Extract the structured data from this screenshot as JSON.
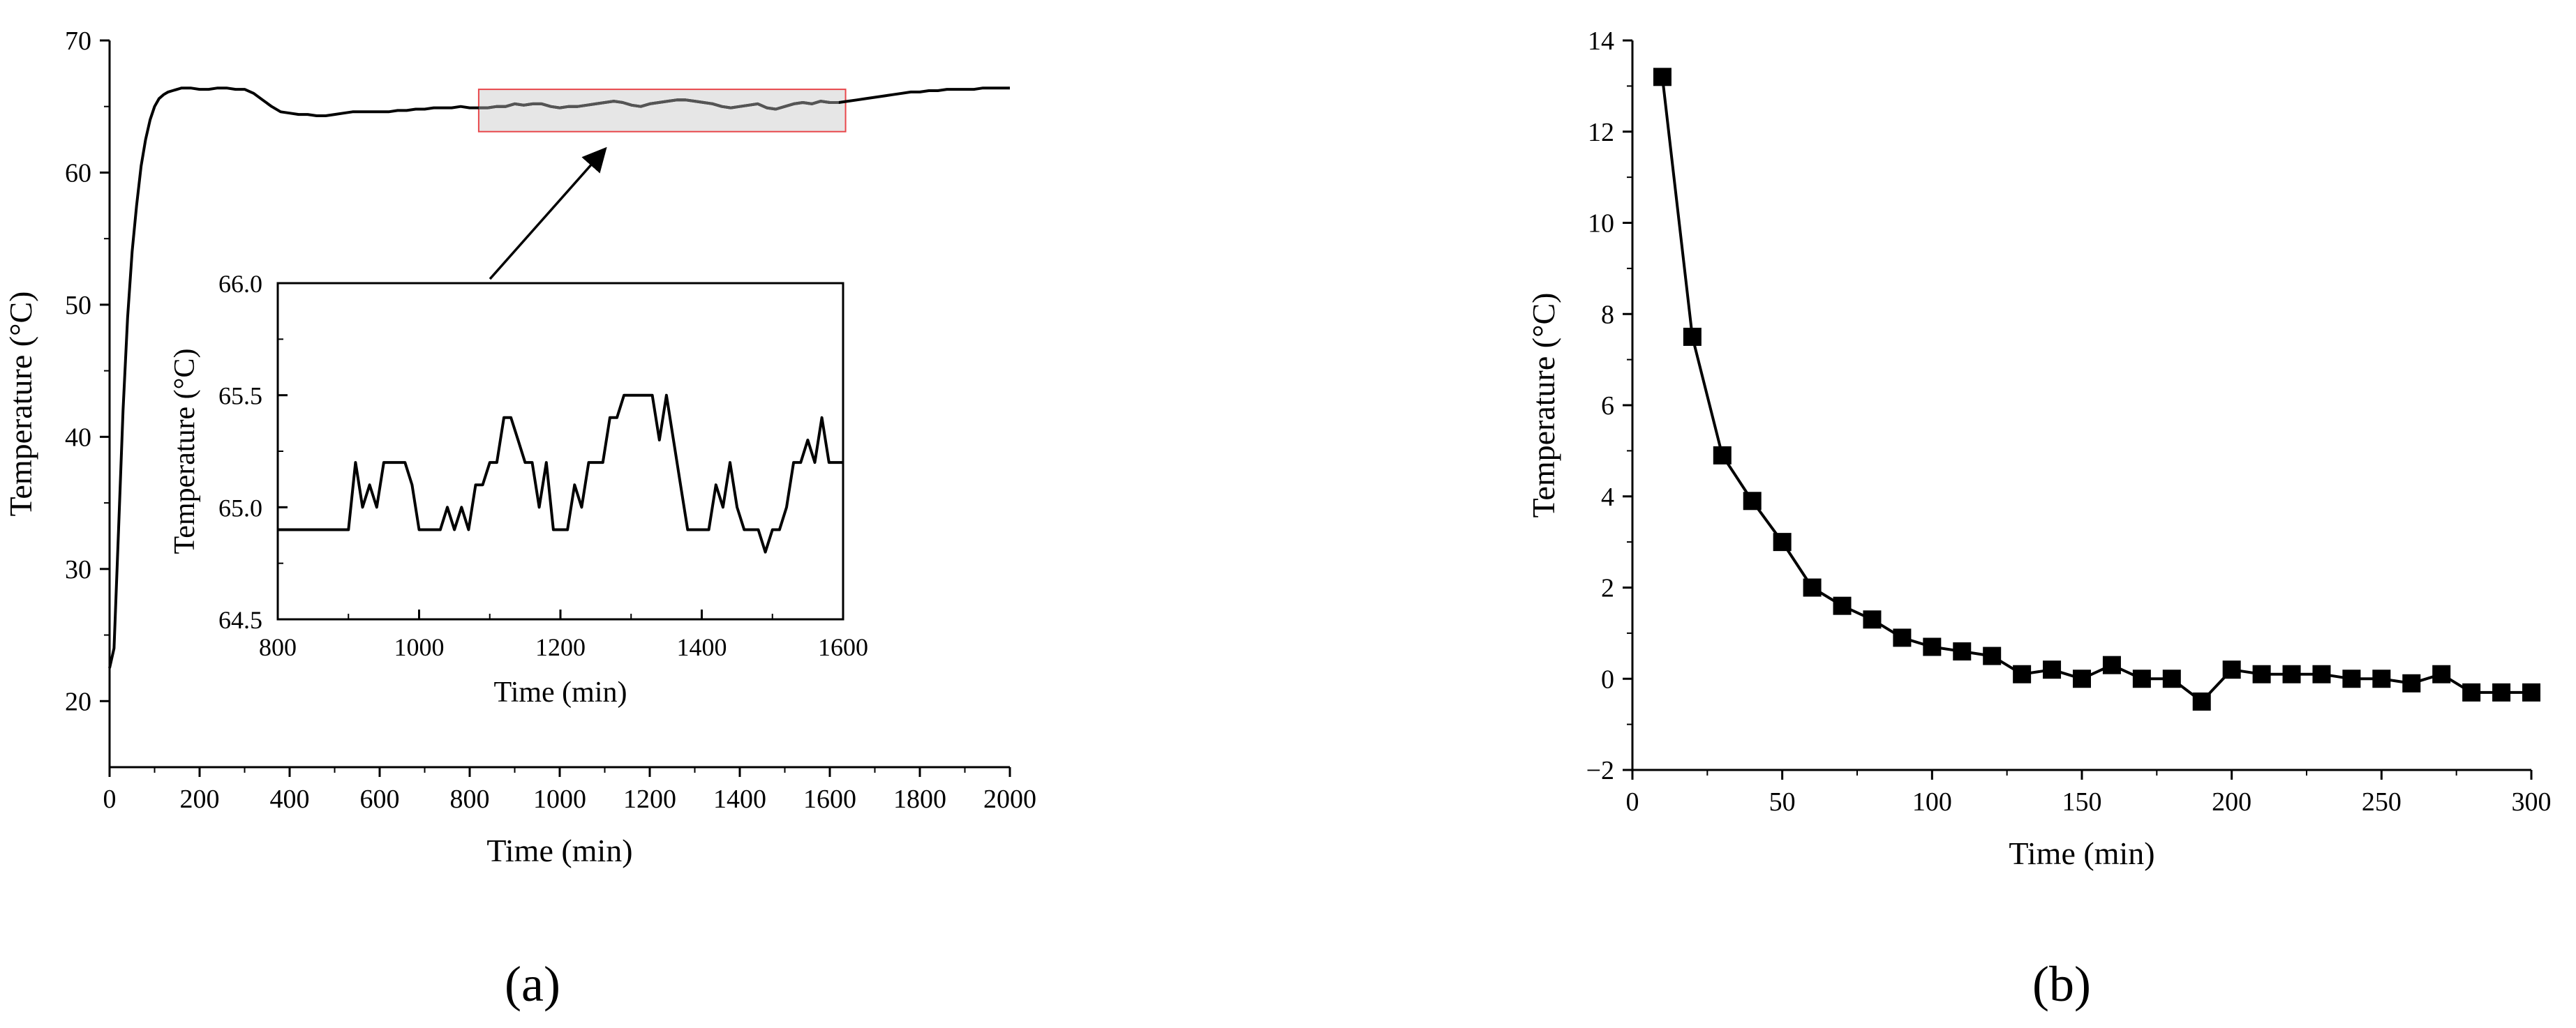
{
  "figure": {
    "panel_a_label": "(a)",
    "panel_b_label": "(b)"
  },
  "chart_data": [
    {
      "id": "a",
      "type": "line",
      "title": "",
      "xlabel": "Time (min)",
      "ylabel": "Temperature (°C)",
      "xlim": [
        0,
        2000
      ],
      "ylim": [
        15,
        70
      ],
      "xticks": [
        "0",
        "200",
        "400",
        "600",
        "800",
        "1000",
        "1200",
        "1400",
        "1600",
        "1800",
        "2000"
      ],
      "yticks": [
        "20",
        "30",
        "40",
        "50",
        "60",
        "70"
      ],
      "grid": false,
      "legend": "none",
      "highlight_region": {
        "x": [
          820,
          1635
        ],
        "y": [
          63.1,
          66.3
        ],
        "fill": "#e6e6e6",
        "stroke": "#e8474b"
      },
      "series": [
        {
          "color": "#000000",
          "x": [
            0,
            10,
            20,
            30,
            40,
            50,
            60,
            70,
            80,
            90,
            100,
            110,
            120,
            130,
            140,
            160,
            180,
            200,
            220,
            240,
            260,
            280,
            300,
            320,
            340,
            360,
            380,
            400,
            420,
            440,
            460,
            480,
            500,
            520,
            540,
            560,
            580,
            600,
            620,
            640,
            660,
            680,
            700,
            720,
            740,
            760,
            780,
            800,
            820,
            840,
            860,
            880,
            900,
            920,
            940,
            960,
            980,
            1000,
            1020,
            1040,
            1060,
            1080,
            1100,
            1120,
            1140,
            1160,
            1180,
            1200,
            1220,
            1240,
            1260,
            1280,
            1300,
            1320,
            1340,
            1360,
            1380,
            1400,
            1420,
            1440,
            1460,
            1480,
            1500,
            1520,
            1540,
            1560,
            1580,
            1600,
            1620,
            1640,
            1660,
            1680,
            1700,
            1720,
            1740,
            1760,
            1780,
            1800,
            1820,
            1840,
            1860,
            1880,
            1900,
            1920,
            1940,
            1960,
            1980,
            2000
          ],
          "y": [
            22.5,
            24,
            33,
            42,
            49,
            54,
            57.5,
            60.5,
            62.5,
            64,
            65,
            65.6,
            65.9,
            66.1,
            66.2,
            66.4,
            66.4,
            66.3,
            66.3,
            66.4,
            66.4,
            66.3,
            66.3,
            66.0,
            65.5,
            65.0,
            64.6,
            64.5,
            64.4,
            64.4,
            64.3,
            64.3,
            64.4,
            64.5,
            64.6,
            64.6,
            64.6,
            64.6,
            64.6,
            64.7,
            64.7,
            64.8,
            64.8,
            64.9,
            64.9,
            64.9,
            65.0,
            64.9,
            64.9,
            64.9,
            65.0,
            65.0,
            65.2,
            65.1,
            65.2,
            65.2,
            65.0,
            64.9,
            65.0,
            65.0,
            65.1,
            65.2,
            65.3,
            65.4,
            65.3,
            65.1,
            65.0,
            65.2,
            65.3,
            65.4,
            65.5,
            65.5,
            65.4,
            65.3,
            65.2,
            65.0,
            64.9,
            65.0,
            65.1,
            65.2,
            64.9,
            64.8,
            65.0,
            65.2,
            65.3,
            65.2,
            65.4,
            65.3,
            65.3,
            65.4,
            65.5,
            65.6,
            65.7,
            65.8,
            65.9,
            66.0,
            66.1,
            66.1,
            66.2,
            66.2,
            66.3,
            66.3,
            66.3,
            66.3,
            66.4,
            66.4,
            66.4,
            66.4
          ]
        }
      ]
    },
    {
      "id": "a-inset",
      "type": "line",
      "title": "",
      "xlabel": "Time (min)",
      "ylabel": "Temperature (°C)",
      "xlim": [
        800,
        1600
      ],
      "ylim": [
        64.5,
        66.0
      ],
      "xticks": [
        "800",
        "1000",
        "1200",
        "1400",
        "1600"
      ],
      "yticks": [
        "64.5",
        "65.0",
        "65.5",
        "66.0"
      ],
      "grid": false,
      "legend": "none",
      "series": [
        {
          "color": "#000000",
          "x": [
            800,
            900,
            910,
            920,
            930,
            940,
            950,
            960,
            970,
            980,
            990,
            1000,
            1010,
            1020,
            1030,
            1040,
            1050,
            1060,
            1070,
            1080,
            1090,
            1100,
            1110,
            1120,
            1130,
            1140,
            1150,
            1160,
            1170,
            1180,
            1190,
            1200,
            1210,
            1220,
            1230,
            1240,
            1250,
            1260,
            1270,
            1280,
            1290,
            1300,
            1310,
            1320,
            1330,
            1340,
            1350,
            1360,
            1370,
            1380,
            1390,
            1400,
            1410,
            1420,
            1430,
            1440,
            1450,
            1460,
            1470,
            1480,
            1490,
            1500,
            1510,
            1520,
            1530,
            1540,
            1550,
            1560,
            1570,
            1580,
            1590,
            1600
          ],
          "y": [
            64.9,
            64.9,
            65.2,
            65.0,
            65.1,
            65.0,
            65.2,
            65.2,
            65.2,
            65.2,
            65.1,
            64.9,
            64.9,
            64.9,
            64.9,
            65.0,
            64.9,
            65.0,
            64.9,
            65.1,
            65.1,
            65.2,
            65.2,
            65.4,
            65.4,
            65.3,
            65.2,
            65.2,
            65.0,
            65.2,
            64.9,
            64.9,
            64.9,
            65.1,
            65.0,
            65.2,
            65.2,
            65.2,
            65.4,
            65.4,
            65.5,
            65.5,
            65.5,
            65.5,
            65.5,
            65.3,
            65.5,
            65.3,
            65.1,
            64.9,
            64.9,
            64.9,
            64.9,
            65.1,
            65.0,
            65.2,
            65.0,
            64.9,
            64.9,
            64.9,
            64.8,
            64.9,
            64.9,
            65.0,
            65.2,
            65.2,
            65.3,
            65.2,
            65.4,
            65.2,
            65.2,
            65.2
          ]
        }
      ]
    },
    {
      "id": "b",
      "type": "line",
      "title": "",
      "xlabel": "Time (min)",
      "ylabel": "Temperature (°C)",
      "xlim": [
        0,
        300
      ],
      "ylim": [
        -2,
        14
      ],
      "xticks": [
        "0",
        "50",
        "100",
        "150",
        "200",
        "250",
        "300"
      ],
      "yticks": [
        "−2",
        "0",
        "2",
        "4",
        "6",
        "8",
        "10",
        "12",
        "14"
      ],
      "grid": false,
      "legend": "none",
      "markers": "square",
      "series": [
        {
          "color": "#000000",
          "x": [
            10,
            20,
            30,
            40,
            50,
            60,
            70,
            80,
            90,
            100,
            110,
            120,
            130,
            140,
            150,
            160,
            170,
            180,
            190,
            200,
            210,
            220,
            230,
            240,
            250,
            260,
            270,
            280,
            290,
            300
          ],
          "y": [
            13.2,
            7.5,
            4.9,
            3.9,
            3.0,
            2.0,
            1.6,
            1.3,
            0.9,
            0.7,
            0.6,
            0.5,
            0.1,
            0.2,
            0.0,
            0.3,
            0.0,
            0.0,
            -0.5,
            0.2,
            0.1,
            0.1,
            0.1,
            0.0,
            0.0,
            -0.1,
            0.1,
            -0.3,
            -0.3,
            -0.3
          ]
        }
      ]
    }
  ]
}
